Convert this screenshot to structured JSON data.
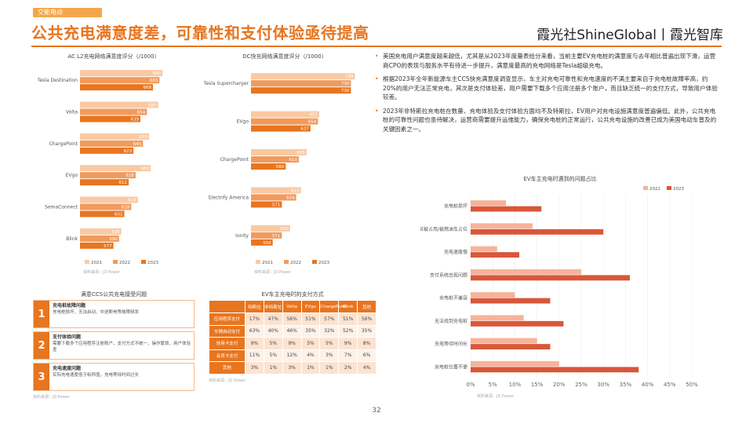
{
  "header": {
    "section_tag": "交能电动",
    "title": "公共充电满意度差，可靠性和支付体验亟待提高",
    "brand": "霞光社ShineGlobal丨霞光智库"
  },
  "colors": {
    "accent": "#e8751f",
    "bar_2021": "#f9c9a4",
    "bar_2022": "#f29a5b",
    "bar_2023": "#e8751f",
    "light_2022": "#f6b39a",
    "dark_2023": "#d9573a"
  },
  "bullets": [
    "美国充电用户满意度越来越低，尤其是从2023年度量表给分来看，当前主要EV充电桩的满意度与去年相比普遍出现下滑，运营商CPO的表现与服务水平有待进一步提升，满意度最高的充电网络是Tesla超级充电。",
    "根据2023年全年新能源车主CCS快充满意度调查显示，车主对充电可靠性和充电速度的不满主要来自于充电桩故障率高，约20%的用户无法正常充电，其次是支付体验差，用户需要下载多个应用注册多个账户，而且缺乏统一的支付方式，导致用户体验较差。",
    "2023年非特斯拉充电桩在数量、充电体验及支付体验方面均不及特斯拉，EV用户对充电设施满意度普遍偏低。此外，公共充电桩的可靠性问题也亟待解决，运营商需要提升运维能力，确保充电桩的正常运行，公共充电设施的改善已成为美国电动车普及的关键因素之一。"
  ],
  "chart_data": [
    {
      "type": "bar",
      "title": "AC L2充电网络满意度评分（/1000）",
      "categories": [
        "Tesla Destination",
        "Volta",
        "ChargePoint",
        "EVgo",
        "SemaConnect",
        "Blink"
      ],
      "series": [
        {
          "name": "2021",
          "values": [
            690,
            680,
            659,
            663,
            633,
            595
          ]
        },
        {
          "name": "2022",
          "values": [
            683,
            654,
            645,
            628,
            618,
            590
          ]
        },
        {
          "name": "2023",
          "values": [
            668,
            639,
            623,
            612,
            602,
            577
          ]
        }
      ],
      "legend": "bottom"
    },
    {
      "type": "bar",
      "title": "DC快充网络满意度评分（/1000）",
      "categories": [
        "Tesla Supercharger",
        "EVgo",
        "ChargePoint",
        "Electrify America",
        "Ionity"
      ],
      "series": [
        {
          "name": "2021",
          "values": [
            739,
            657,
            628,
            615,
            590
          ]
        },
        {
          "name": "2022",
          "values": [
            730,
            654,
            610,
            604,
            571
          ]
        },
        {
          "name": "2023",
          "values": [
            730,
            637,
            580,
            571,
            550
          ]
        }
      ],
      "legend": "bottom"
    },
    {
      "type": "bar",
      "title": "EV车主充电时遇到的问题占比",
      "categories": [
        "充电桩损坏",
        "充电桩被占用/被燃油车占位",
        "充电速度慢",
        "支付系统出现问题",
        "充电桩不兼容",
        "无法找到充电桩",
        "充电等待时间长",
        "充电桩位置不便"
      ],
      "series": [
        {
          "name": "2022",
          "values": [
            8,
            14,
            6,
            25,
            10,
            12,
            15,
            20
          ]
        },
        {
          "name": "2023",
          "values": [
            16,
            30,
            11,
            36,
            18,
            21,
            18,
            38
          ]
        }
      ],
      "xlim": [
        0,
        50
      ],
      "x_ticks": [
        "0%",
        "5%",
        "10%",
        "15%",
        "20%",
        "25%",
        "30%",
        "35%",
        "40%",
        "45%",
        "50%"
      ],
      "legend": "top-right"
    }
  ],
  "chart_legends": {
    "ac": [
      "2021",
      "2022",
      "2023"
    ],
    "dc": [
      "2021",
      "2022",
      "2023"
    ],
    "issues": [
      "2022",
      "2023"
    ]
  },
  "panel_issues": {
    "title": "满意CCS公共充电接受问题",
    "items": [
      {
        "num": "1",
        "head": "充电桩故障问题",
        "text": "充电桩损坏、无法启动、中途断电等故障频发"
      },
      {
        "num": "2",
        "head": "支付体验问题",
        "text": "需要下载多个应用程序注册账户，支付方式不统一，操作繁琐，用户体验差"
      },
      {
        "num": "3",
        "head": "充电速度问题",
        "text": "实际充电速度低于标称值，充电等待时间过长"
      }
    ],
    "source": "资料来源：JD Power"
  },
  "panel_payment": {
    "title": "EV车主充电时的支付方式",
    "columns": [
      "",
      "特斯拉",
      "非特斯拉",
      "Volta",
      "EVgo",
      "ChargePoint",
      "Blink",
      "其他"
    ],
    "rows": [
      {
        "label": "应用程序支付",
        "cells": [
          "17%",
          "47%",
          "56%",
          "51%",
          "57%",
          "51%",
          "56%"
        ]
      },
      {
        "label": "车辆自动支付",
        "cells": [
          "63%",
          "40%",
          "46%",
          "35%",
          "32%",
          "52%",
          "35%"
        ]
      },
      {
        "label": "信用卡支付",
        "cells": [
          "9%",
          "5%",
          "9%",
          "5%",
          "5%",
          "9%",
          "8%"
        ]
      },
      {
        "label": "会员卡支付",
        "cells": [
          "11%",
          "5%",
          "12%",
          "4%",
          "3%",
          "7%",
          "6%"
        ]
      },
      {
        "label": "其他",
        "cells": [
          "3%",
          "1%",
          "3%",
          "1%",
          "1%",
          "2%",
          "4%"
        ]
      }
    ],
    "source": "资料来源：JD Power"
  },
  "sources": {
    "ac": "资料来源：JD Power",
    "dc": "资料来源：JD Power",
    "issues": "资料来源：JD Power"
  },
  "page_number": "32"
}
